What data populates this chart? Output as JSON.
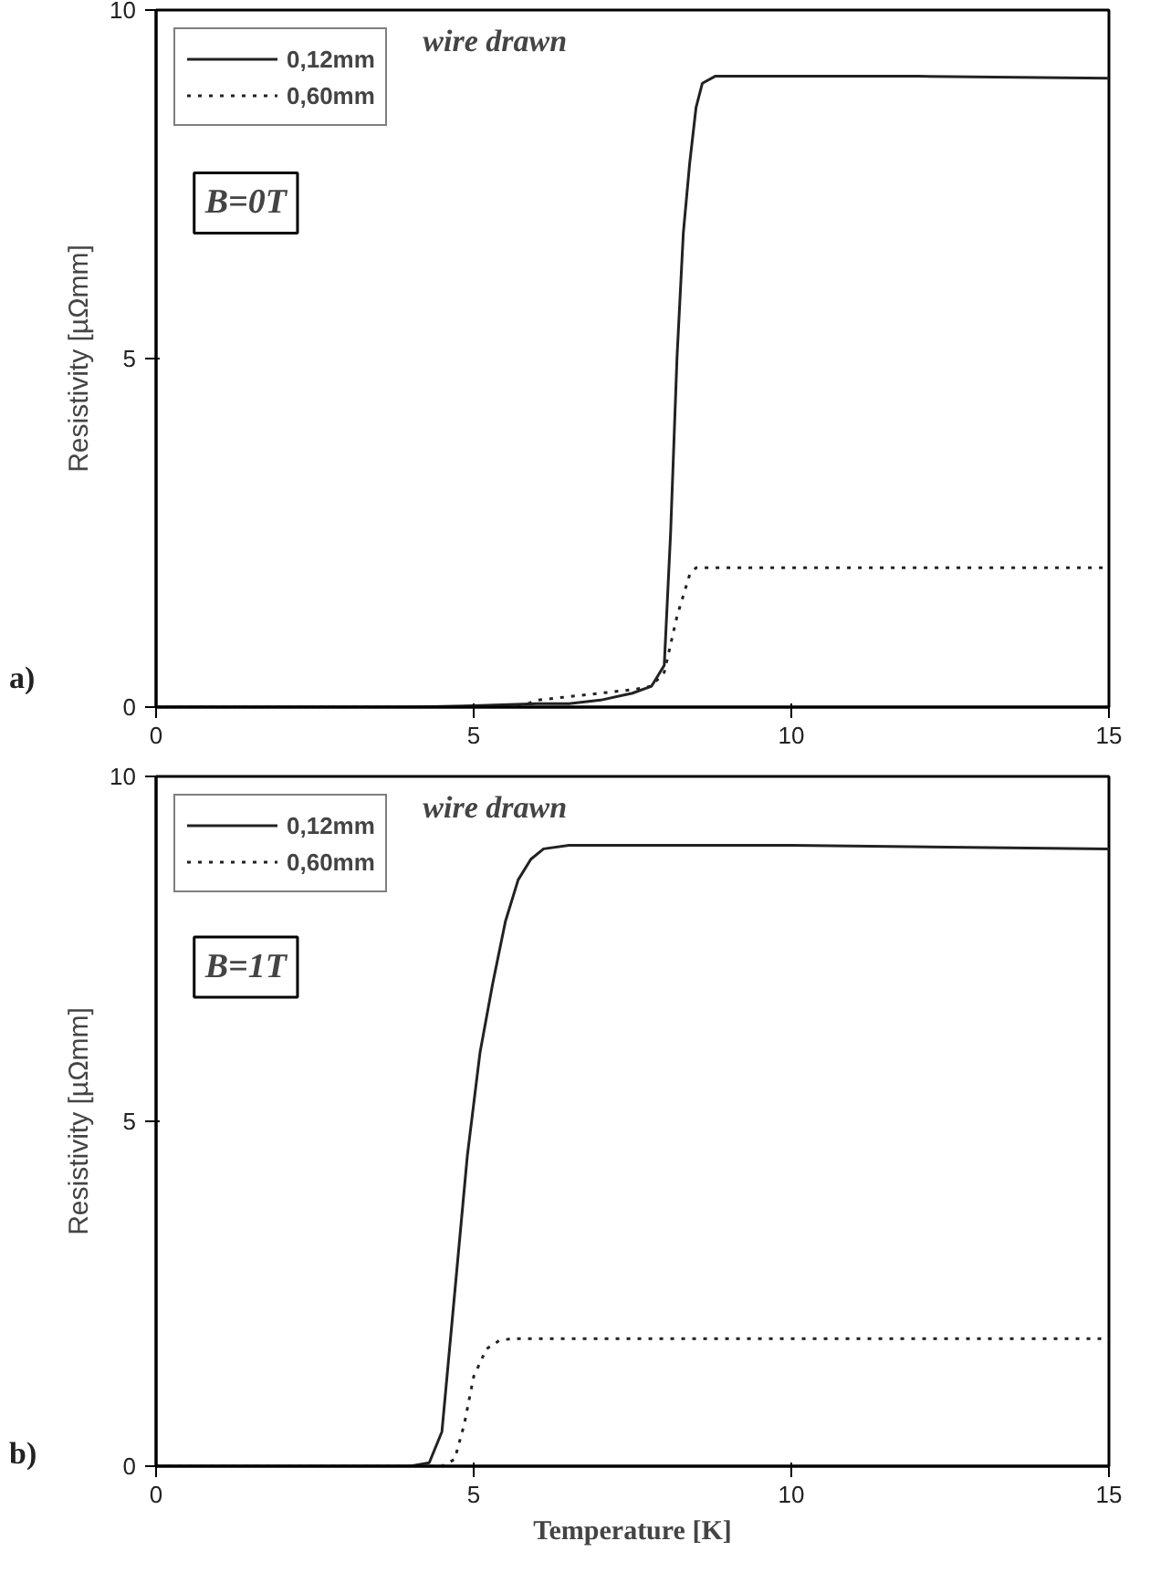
{
  "chart_data": [
    {
      "type": "line",
      "ylabel": "Resistivity [µΩmm]",
      "annotations": [
        "wire drawn",
        "B=0T",
        "a)"
      ],
      "xlim": [
        0,
        15
      ],
      "ylim": [
        0,
        10
      ],
      "xticks": [
        0,
        5,
        10,
        15
      ],
      "yticks": [
        0,
        5,
        10
      ],
      "legend": "top left",
      "grid": false,
      "series": [
        {
          "name": "0,12mm",
          "color": "#222222",
          "line_style": "solid",
          "x": [
            0,
            2,
            4,
            5,
            6,
            6.5,
            7,
            7.5,
            7.8,
            8.0,
            8.1,
            8.2,
            8.3,
            8.4,
            8.5,
            8.6,
            8.8,
            9.0,
            10,
            12,
            15
          ],
          "values": [
            0,
            0,
            0,
            0.02,
            0.05,
            0.05,
            0.1,
            0.2,
            0.3,
            0.6,
            2.5,
            5,
            6.8,
            7.8,
            8.6,
            8.95,
            9.05,
            9.05,
            9.05,
            9.05,
            9.02
          ]
        },
        {
          "name": "0,60mm",
          "color": "#222222",
          "line_style": "dotted",
          "x": [
            0,
            5,
            5.8,
            6,
            6.5,
            7,
            7.5,
            7.8,
            8.0,
            8.2,
            8.4,
            8.5,
            8.6,
            9,
            12,
            15
          ],
          "values": [
            0,
            0,
            0.03,
            0.1,
            0.15,
            0.2,
            0.25,
            0.3,
            0.5,
            1.3,
            1.9,
            2.0,
            2.0,
            2.0,
            2.0,
            2.0
          ]
        }
      ]
    },
    {
      "type": "line",
      "xlabel": "Temperature [K]",
      "ylabel": "Resistivity [µΩmm]",
      "annotations": [
        "wire drawn",
        "B=1T",
        "b)"
      ],
      "xlim": [
        0,
        15
      ],
      "ylim": [
        0,
        10
      ],
      "xticks": [
        0,
        5,
        10,
        15
      ],
      "yticks": [
        0,
        5,
        10
      ],
      "legend": "top left",
      "grid": false,
      "series": [
        {
          "name": "0,12mm",
          "color": "#222222",
          "line_style": "solid",
          "x": [
            0,
            4,
            4.3,
            4.5,
            4.7,
            4.9,
            5.1,
            5.3,
            5.5,
            5.7,
            5.9,
            6.1,
            6.5,
            8,
            10,
            15
          ],
          "values": [
            0,
            0,
            0.05,
            0.5,
            2.5,
            4.5,
            6.0,
            7.0,
            7.9,
            8.5,
            8.8,
            8.95,
            9.0,
            9.0,
            9.0,
            8.95
          ]
        },
        {
          "name": "0,60mm",
          "color": "#222222",
          "line_style": "dotted",
          "x": [
            0,
            4.5,
            4.7,
            4.85,
            5.0,
            5.2,
            5.4,
            5.6,
            6,
            10,
            15
          ],
          "values": [
            0,
            0,
            0.1,
            0.6,
            1.3,
            1.7,
            1.82,
            1.85,
            1.85,
            1.85,
            1.85
          ]
        }
      ]
    }
  ]
}
